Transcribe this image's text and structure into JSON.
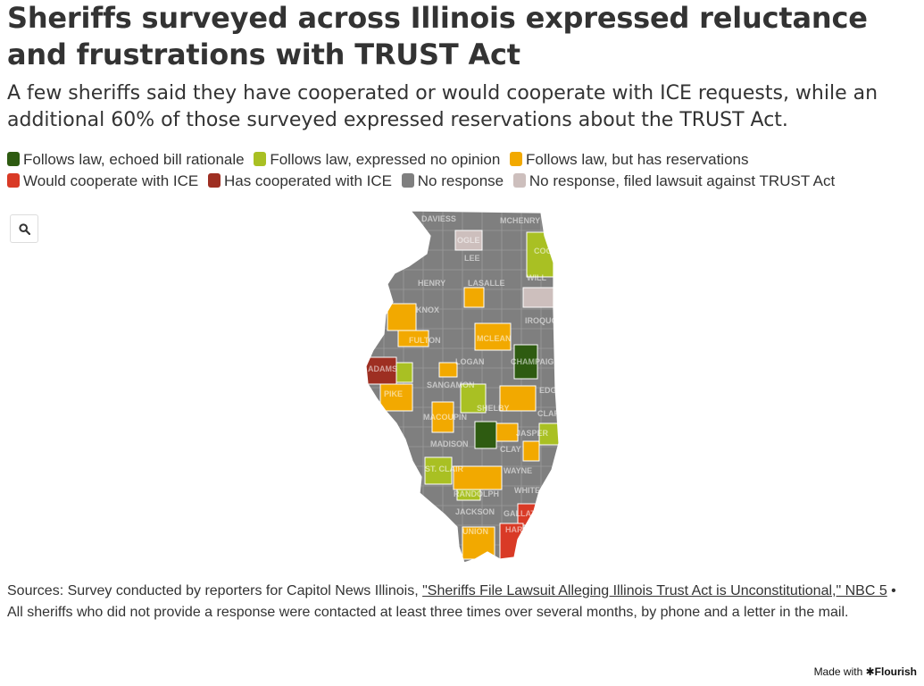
{
  "title": "Sheriffs surveyed across Illinois expressed reluctance and frustrations with TRUST Act",
  "subtitle": "A few sheriffs said they have cooperated or would cooperate with ICE requests, while an additional 60% of those surveyed expressed reservations about the TRUST Act.",
  "legend": [
    {
      "label": "Follows law, echoed bill rationale",
      "color": "#2e5b11"
    },
    {
      "label": "Follows law, expressed no opinion",
      "color": "#a9c023"
    },
    {
      "label": "Follows law, but has reservations",
      "color": "#f2a900"
    },
    {
      "label": "Would cooperate with ICE",
      "color": "#d93a26"
    },
    {
      "label": "Has cooperated with ICE",
      "color": "#9e2f22"
    },
    {
      "label": "No response",
      "color": "#7f7f7f"
    },
    {
      "label": "No response, filed lawsuit against TRUST Act",
      "color": "#cdbfbd"
    }
  ],
  "map": {
    "zoom_icon": "search-icon",
    "county_labels": [
      "DAVIESS",
      "MCHENRY",
      "OGLE",
      "COOK",
      "LEE",
      "HENRY",
      "LASALLE",
      "WILL",
      "KNOX",
      "IROQUOIS",
      "FULTON",
      "MCLEAN",
      "ADAMS",
      "LOGAN",
      "CHAMPAIGN",
      "PIKE",
      "SANGAMON",
      "EDGAR",
      "MACOUPIN",
      "SHELBY",
      "CLARK",
      "MADISON",
      "JASPER",
      "ST. CLAIR",
      "CLAY",
      "WAYNE",
      "RANDOLPH",
      "WHITE",
      "JACKSON",
      "GALLATIN",
      "UNION",
      "HARDIN"
    ]
  },
  "sources": {
    "prefix": "Sources: Survey conducted by reporters for Capitol News Illinois, ",
    "link_text": "\"Sheriffs File Lawsuit Alleging Illinois Trust Act is Unconstitutional,\" NBC 5",
    "suffix": " • All sheriffs who did not provide a response were contacted at least three times over several months, by phone and a letter in the mail."
  },
  "credit": {
    "prefix": "Made with ",
    "brand": "Flourish"
  }
}
